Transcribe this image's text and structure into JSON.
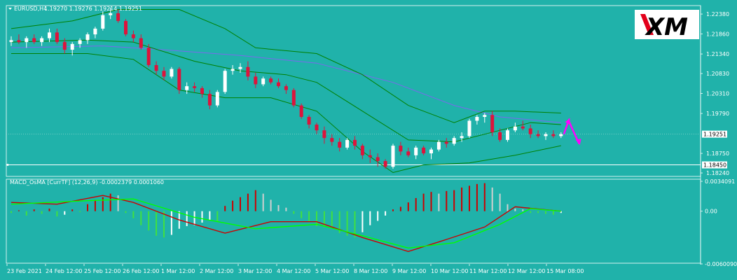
{
  "header": {
    "symbol": "EURUSD,H4",
    "ohlc": "1.19270 1.19276 1.19214 1.19251"
  },
  "logo": {
    "text": "XM"
  },
  "colors": {
    "background": "#20b2aa",
    "bull": "#ffffff",
    "bear": "#dc143c",
    "bands": "#008000",
    "ma": "#7b68ee",
    "macd_main": "#cc0000",
    "macd_signal": "#00ff00",
    "arrow": "#ff00ff"
  },
  "price_axis": {
    "ticks": [
      "1.22380",
      "1.21860",
      "1.21340",
      "1.20830",
      "1.20310",
      "1.19790",
      "1.19251",
      "1.18750",
      "1.18450",
      "1.18240"
    ],
    "current_price": "1.19251",
    "hline_price": "1.18450"
  },
  "macd": {
    "label": "MACD_OsMA [CurrTF] (12,26,9) -0.0002379 0.0001060",
    "ticks": [
      "0.0034091",
      "0.00",
      "-0.0060090"
    ]
  },
  "time_axis": {
    "labels": [
      "23 Feb 2021",
      "24 Feb 12:00",
      "25 Feb 12:00",
      "26 Feb 12:00",
      "1 Mar 12:00",
      "2 Mar 12:00",
      "3 Mar 12:00",
      "4 Mar 12:00",
      "5 Mar 12:00",
      "8 Mar 12:00",
      "9 Mar 12:00",
      "10 Mar 12:00",
      "11 Mar 12:00",
      "12 Mar 12:00",
      "15 Mar 08:00"
    ]
  },
  "chart_data": {
    "type": "candlestick",
    "symbol": "EURUSD",
    "timeframe": "H4",
    "price_range": [
      1.1815,
      1.226
    ],
    "candles": [
      [
        1.2165,
        1.218,
        1.2155,
        1.217
      ],
      [
        1.217,
        1.2185,
        1.216,
        1.2165
      ],
      [
        1.2165,
        1.218,
        1.215,
        1.2175
      ],
      [
        1.2175,
        1.2185,
        1.216,
        1.2165
      ],
      [
        1.2165,
        1.218,
        1.2155,
        1.2175
      ],
      [
        1.2175,
        1.22,
        1.2165,
        1.219
      ],
      [
        1.219,
        1.22,
        1.216,
        1.2165
      ],
      [
        1.2165,
        1.2175,
        1.2135,
        1.2145
      ],
      [
        1.2145,
        1.2165,
        1.213,
        1.216
      ],
      [
        1.216,
        1.2175,
        1.215,
        1.217
      ],
      [
        1.217,
        1.219,
        1.216,
        1.2185
      ],
      [
        1.2185,
        1.2205,
        1.2175,
        1.22
      ],
      [
        1.22,
        1.2245,
        1.2195,
        1.2235
      ],
      [
        1.2235,
        1.2255,
        1.2225,
        1.224
      ],
      [
        1.224,
        1.225,
        1.2215,
        1.222
      ],
      [
        1.222,
        1.2225,
        1.218,
        1.2185
      ],
      [
        1.2185,
        1.2195,
        1.2165,
        1.2175
      ],
      [
        1.2175,
        1.2185,
        1.2145,
        1.215
      ],
      [
        1.215,
        1.216,
        1.21,
        1.2105
      ],
      [
        1.2105,
        1.2115,
        1.208,
        1.209
      ],
      [
        1.209,
        1.21,
        1.2065,
        1.2075
      ],
      [
        1.2075,
        1.21,
        1.207,
        1.2095
      ],
      [
        1.2095,
        1.21,
        1.203,
        1.204
      ],
      [
        1.204,
        1.206,
        1.203,
        1.205
      ],
      [
        1.205,
        1.206,
        1.2035,
        1.2045
      ],
      [
        1.2045,
        1.205,
        1.202,
        1.203
      ],
      [
        1.203,
        1.204,
        1.199,
        1.2
      ],
      [
        1.2,
        1.204,
        1.1995,
        1.2035
      ],
      [
        1.2035,
        1.2095,
        1.203,
        1.209
      ],
      [
        1.209,
        1.2105,
        1.208,
        1.2095
      ],
      [
        1.2095,
        1.211,
        1.2085,
        1.21
      ],
      [
        1.21,
        1.2115,
        1.2065,
        1.2075
      ],
      [
        1.2075,
        1.2085,
        1.2045,
        1.2055
      ],
      [
        1.2055,
        1.2075,
        1.205,
        1.207
      ],
      [
        1.207,
        1.2075,
        1.2055,
        1.206
      ],
      [
        1.206,
        1.207,
        1.2045,
        1.205
      ],
      [
        1.205,
        1.2055,
        1.203,
        1.204
      ],
      [
        1.204,
        1.2045,
        1.1995,
        1.2
      ],
      [
        1.2,
        1.2005,
        1.1965,
        1.197
      ],
      [
        1.197,
        1.1975,
        1.194,
        1.195
      ],
      [
        1.195,
        1.1955,
        1.1925,
        1.1935
      ],
      [
        1.1935,
        1.1945,
        1.19,
        1.1915
      ],
      [
        1.1915,
        1.1925,
        1.1895,
        1.1905
      ],
      [
        1.1905,
        1.1915,
        1.188,
        1.189
      ],
      [
        1.189,
        1.1915,
        1.1885,
        1.191
      ],
      [
        1.191,
        1.192,
        1.1885,
        1.1895
      ],
      [
        1.1895,
        1.19,
        1.186,
        1.187
      ],
      [
        1.187,
        1.1885,
        1.185,
        1.1865
      ],
      [
        1.1865,
        1.1875,
        1.184,
        1.1855
      ],
      [
        1.1855,
        1.186,
        1.1835,
        1.184
      ],
      [
        1.184,
        1.19,
        1.1835,
        1.1895
      ],
      [
        1.1895,
        1.1905,
        1.187,
        1.188
      ],
      [
        1.188,
        1.189,
        1.1865,
        1.187
      ],
      [
        1.187,
        1.1895,
        1.186,
        1.189
      ],
      [
        1.189,
        1.1895,
        1.187,
        1.1875
      ],
      [
        1.1875,
        1.189,
        1.186,
        1.1885
      ],
      [
        1.1885,
        1.191,
        1.188,
        1.1905
      ],
      [
        1.1905,
        1.1915,
        1.189,
        1.19
      ],
      [
        1.19,
        1.192,
        1.1895,
        1.1915
      ],
      [
        1.1915,
        1.193,
        1.1905,
        1.192
      ],
      [
        1.192,
        1.1965,
        1.1915,
        1.196
      ],
      [
        1.196,
        1.1975,
        1.195,
        1.197
      ],
      [
        1.197,
        1.198,
        1.1955,
        1.1975
      ],
      [
        1.1975,
        1.1985,
        1.192,
        1.193
      ],
      [
        1.193,
        1.194,
        1.1905,
        1.191
      ],
      [
        1.191,
        1.194,
        1.1905,
        1.1935
      ],
      [
        1.1935,
        1.1955,
        1.193,
        1.1945
      ],
      [
        1.1945,
        1.196,
        1.1935,
        1.194
      ],
      [
        1.194,
        1.195,
        1.1915,
        1.1925
      ],
      [
        1.1925,
        1.1935,
        1.1915,
        1.192
      ],
      [
        1.192,
        1.193,
        1.191,
        1.1925
      ],
      [
        1.1925,
        1.1935,
        1.1915,
        1.192
      ],
      [
        1.192,
        1.193,
        1.1915,
        1.1925
      ]
    ],
    "bollinger_upper": [
      [
        0,
        1.22
      ],
      [
        8,
        1.222
      ],
      [
        14,
        1.225
      ],
      [
        22,
        1.225
      ],
      [
        28,
        1.22
      ],
      [
        32,
        1.215
      ],
      [
        40,
        1.2135
      ],
      [
        46,
        1.208
      ],
      [
        52,
        1.2
      ],
      [
        58,
        1.1955
      ],
      [
        62,
        1.1985
      ],
      [
        66,
        1.1985
      ],
      [
        72,
        1.198
      ]
    ],
    "bollinger_mid": [
      [
        0,
        1.2165
      ],
      [
        10,
        1.217
      ],
      [
        16,
        1.2165
      ],
      [
        24,
        1.2115
      ],
      [
        30,
        1.209
      ],
      [
        36,
        1.208
      ],
      [
        40,
        1.206
      ],
      [
        46,
        1.1985
      ],
      [
        52,
        1.191
      ],
      [
        58,
        1.1905
      ],
      [
        64,
        1.1935
      ],
      [
        68,
        1.1955
      ],
      [
        72,
        1.195
      ]
    ],
    "bollinger_lower": [
      [
        0,
        1.2135
      ],
      [
        10,
        1.2135
      ],
      [
        16,
        1.212
      ],
      [
        22,
        1.204
      ],
      [
        28,
        1.202
      ],
      [
        34,
        1.202
      ],
      [
        40,
        1.1985
      ],
      [
        46,
        1.188
      ],
      [
        50,
        1.1825
      ],
      [
        54,
        1.1845
      ],
      [
        60,
        1.185
      ],
      [
        66,
        1.187
      ],
      [
        72,
        1.1895
      ]
    ],
    "ma_line": [
      [
        0,
        1.215
      ],
      [
        12,
        1.2155
      ],
      [
        20,
        1.2145
      ],
      [
        30,
        1.213
      ],
      [
        40,
        1.211
      ],
      [
        50,
        1.206
      ],
      [
        58,
        1.2
      ],
      [
        64,
        1.197
      ],
      [
        72,
        1.1955
      ]
    ],
    "arrow_up": [
      73,
      1.196
    ],
    "arrow_down": [
      74,
      1.19
    ],
    "macd_range": [
      -0.006009,
      0.0034091
    ],
    "macd_hist": [
      -0.0002,
      0.0001,
      -0.0005,
      0.0002,
      -0.0003,
      0.0003,
      -0.0006,
      -0.0004,
      0.0002,
      -0.0001,
      0.0008,
      0.0013,
      0.0016,
      0.002,
      0.0018,
      -0.0002,
      -0.0008,
      -0.0016,
      -0.0022,
      -0.0028,
      -0.003,
      -0.0027,
      -0.002,
      -0.0017,
      -0.0016,
      -0.0013,
      -0.001,
      -0.0012,
      0.0006,
      0.0012,
      0.0016,
      0.002,
      0.0024,
      0.002,
      0.0013,
      0.0007,
      0.0004,
      -0.0003,
      -0.0008,
      -0.0012,
      -0.0017,
      -0.0018,
      -0.0018,
      -0.0025,
      -0.0028,
      -0.003,
      -0.0024,
      -0.0016,
      -0.0011,
      -0.0005,
      0.0002,
      0.0005,
      0.001,
      0.0015,
      0.002,
      0.0022,
      0.002,
      0.0023,
      0.0024,
      0.0027,
      0.0029,
      0.0031,
      0.0032,
      0.0027,
      0.002,
      0.0008,
      0.0003,
      0.0002,
      -0.0002,
      -0.0002,
      -0.0003,
      -0.0004,
      -0.0002
    ],
    "macd_main": [
      [
        0,
        0.001
      ],
      [
        6,
        0.0008
      ],
      [
        12,
        0.0018
      ],
      [
        16,
        0.001
      ],
      [
        22,
        -0.001
      ],
      [
        28,
        -0.0025
      ],
      [
        34,
        -0.0012
      ],
      [
        40,
        -0.0012
      ],
      [
        46,
        -0.003
      ],
      [
        52,
        -0.0046
      ],
      [
        56,
        -0.0035
      ],
      [
        62,
        -0.0018
      ],
      [
        66,
        0.0005
      ],
      [
        72,
        0.0
      ]
    ],
    "macd_signal": [
      [
        0,
        0.0008
      ],
      [
        10,
        0.0012
      ],
      [
        16,
        0.0014
      ],
      [
        24,
        -0.0007
      ],
      [
        32,
        -0.002
      ],
      [
        40,
        -0.0015
      ],
      [
        46,
        -0.0028
      ],
      [
        52,
        -0.0042
      ],
      [
        58,
        -0.0036
      ],
      [
        64,
        -0.0015
      ],
      [
        68,
        0.0003
      ],
      [
        72,
        0.0
      ]
    ]
  }
}
